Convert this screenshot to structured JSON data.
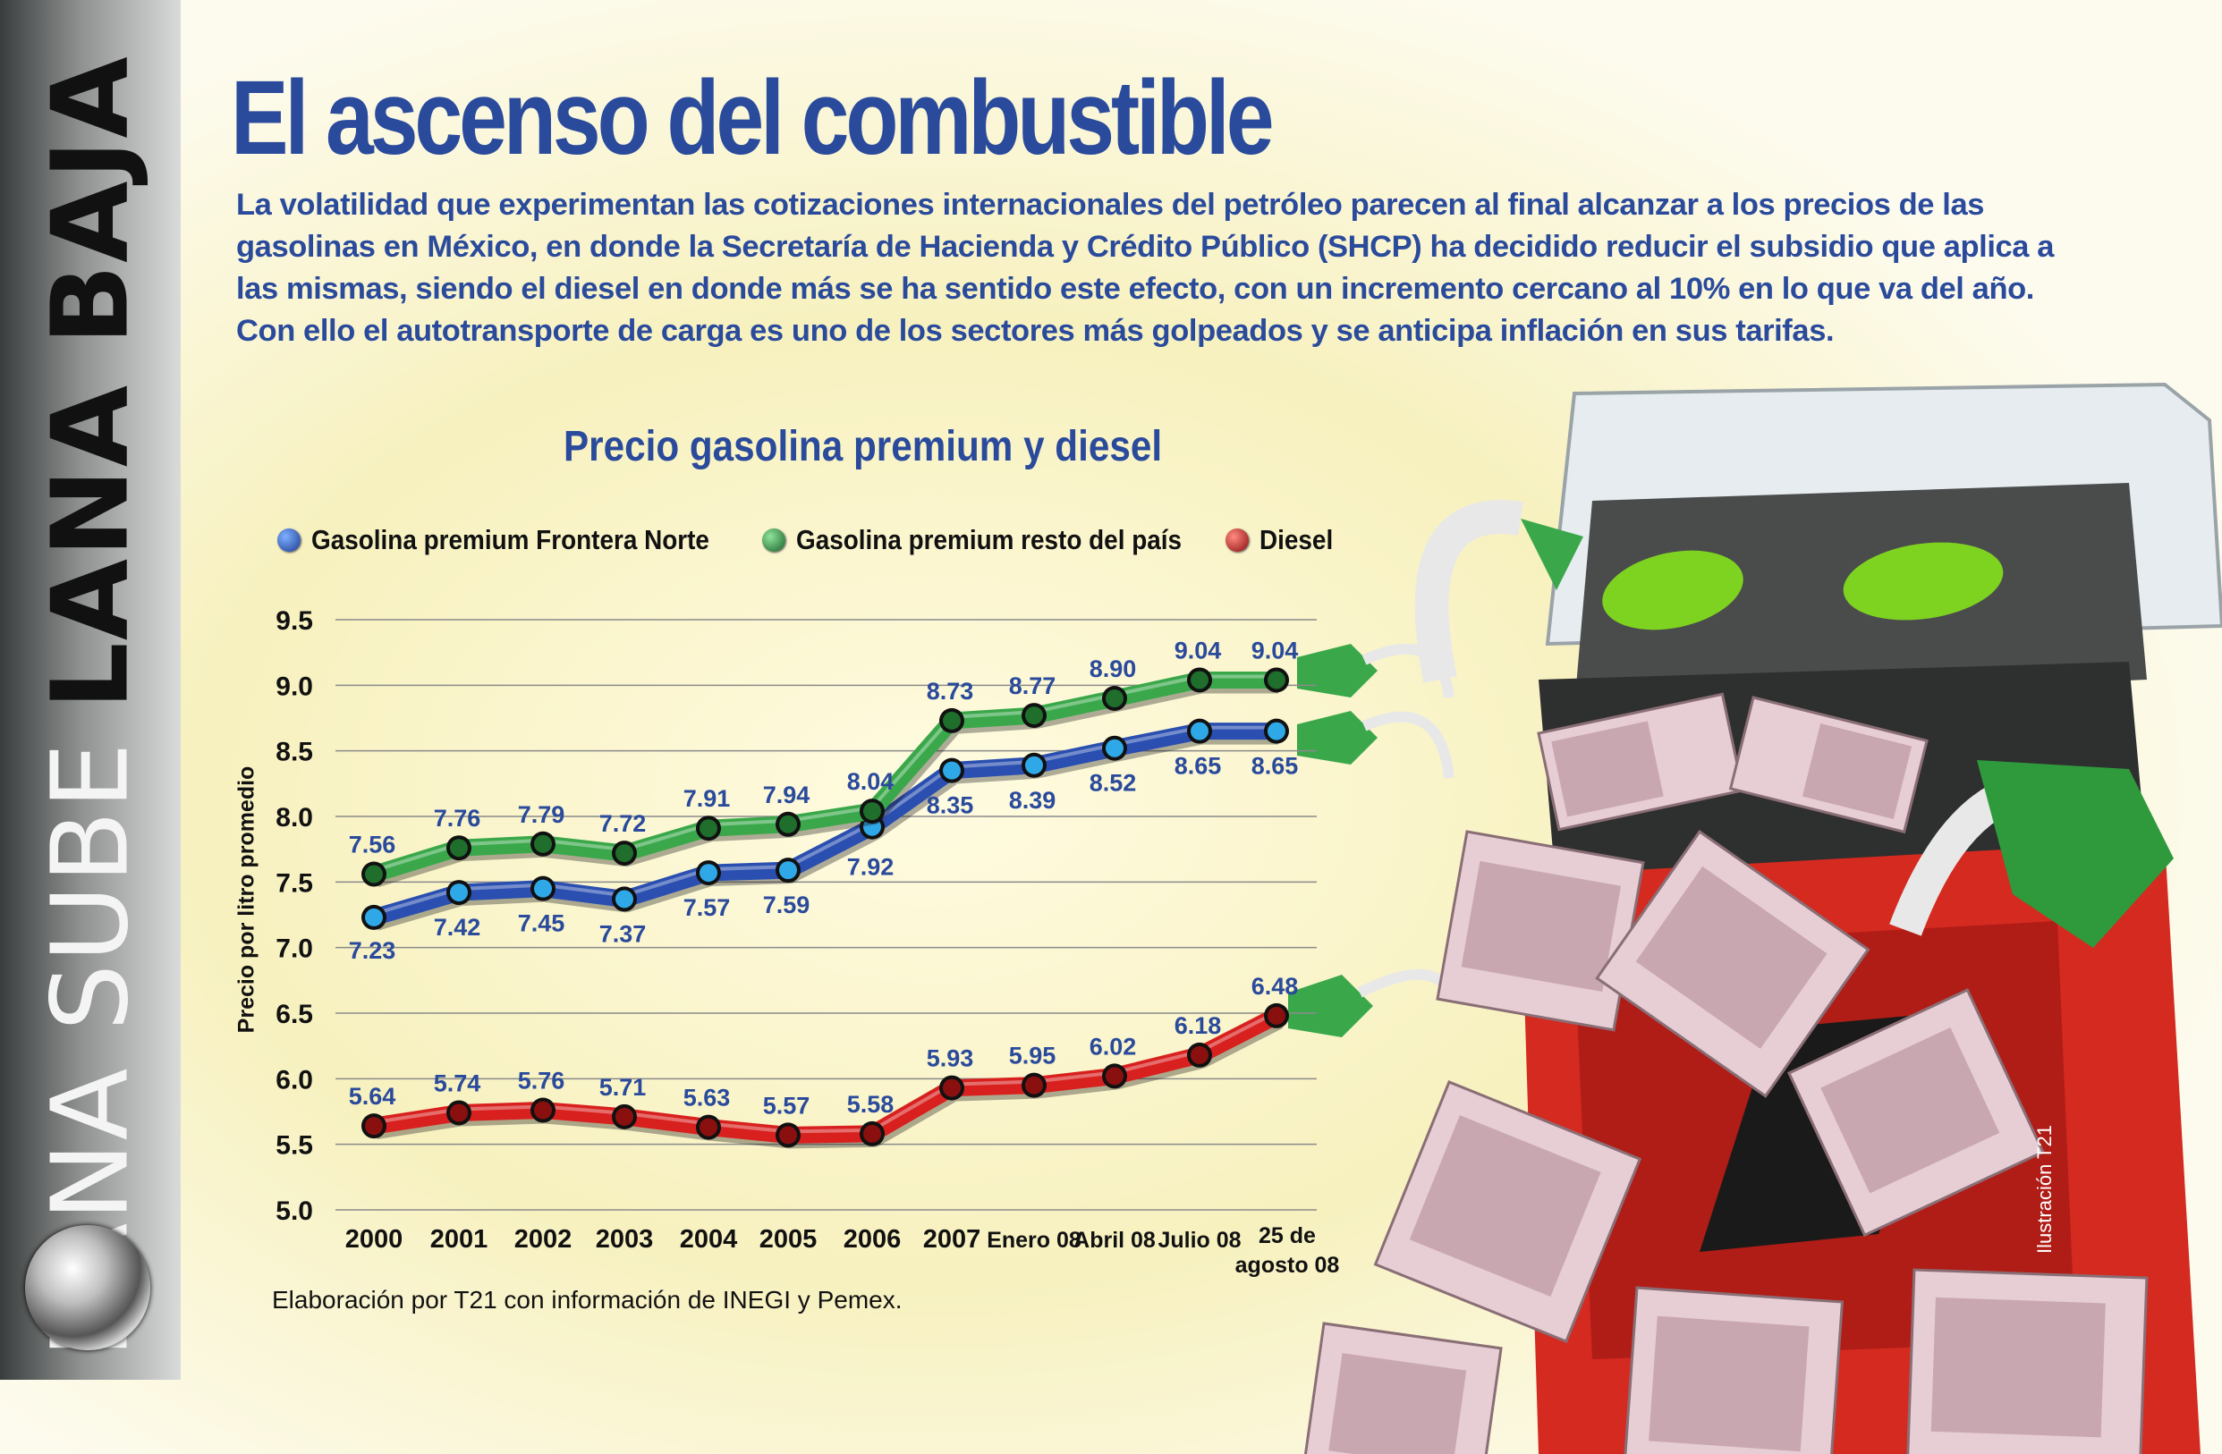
{
  "side_banner": {
    "thin_text": "LANA SUBE",
    "bold_text": "LANA BAJA"
  },
  "title": "El ascenso del combustible",
  "intro": "La volatilidad que experimentan las cotizaciones internacionales del petróleo parecen al final alcanzar a los precios de las gasolinas en México, en donde la Secretaría de Hacienda y Crédito Público (SHCP) ha decidido reducir el subsidio que aplica a las mismas, siendo el diesel en donde más se ha sentido este efecto, con un incremento cercano al 10% en lo que va del año. Con ello el autotransporte de carga es uno de los sectores más golpeados y se anticipa inflación en sus tarifas.",
  "source": "Elaboración por T21 con información de INEGI y Pemex.",
  "credit": "Ilustración T21",
  "colors": {
    "title_blue": "#2a4a9c",
    "blue": "#2a4fb0",
    "green": "#3aa84a",
    "red": "#d8201e"
  },
  "chart_data": {
    "type": "line",
    "title": "Precio gasolina premium y diesel",
    "ylabel": "Precio por litro promedio",
    "xlabel": "",
    "ylim": [
      5.0,
      9.5
    ],
    "yticks": [
      "5.0",
      "5.5",
      "6.0",
      "6.5",
      "7.0",
      "7.5",
      "8.0",
      "8.5",
      "9.0",
      "9.5"
    ],
    "grid": true,
    "legend_position": "top",
    "categories": [
      "2000",
      "2001",
      "2002",
      "2003",
      "2004",
      "2005",
      "2006",
      "2007",
      "Enero 08",
      "Abril 08",
      "Julio 08",
      "25 de agosto 08"
    ],
    "series": [
      {
        "name": "Gasolina premium Frontera Norte",
        "color": "#2a4fb0",
        "dot": "#2fa8e8",
        "values": [
          7.23,
          7.42,
          7.45,
          7.37,
          7.57,
          7.59,
          7.92,
          8.35,
          8.39,
          8.52,
          8.65,
          8.65
        ],
        "labels": [
          "7.23",
          "7.42",
          "7.45",
          "7.37",
          "7.57",
          "7.59",
          "7.92",
          "8.35",
          "8.39",
          "8.52",
          "8.65",
          "8.65"
        ]
      },
      {
        "name": "Gasolina premium resto del país",
        "color": "#3aa84a",
        "dot": "#1f6e2c",
        "values": [
          7.56,
          7.76,
          7.79,
          7.72,
          7.91,
          7.94,
          8.04,
          8.73,
          8.77,
          8.9,
          9.04,
          9.04
        ],
        "labels": [
          "7.56",
          "7.76",
          "7.79",
          "7.72",
          "7.91",
          "7.94",
          "8.04",
          "8.73",
          "8.77",
          "8.90",
          "9.04",
          "9.04"
        ]
      },
      {
        "name": "Diesel",
        "color": "#d8201e",
        "dot": "#8a1010",
        "values": [
          5.64,
          5.74,
          5.76,
          5.71,
          5.63,
          5.57,
          5.58,
          5.93,
          5.95,
          6.02,
          6.18,
          6.48
        ],
        "labels": [
          "5.64",
          "5.74",
          "5.76",
          "5.71",
          "5.63",
          "5.57",
          "5.58",
          "5.93",
          "5.95",
          "6.02",
          "6.18",
          "6.48"
        ]
      }
    ]
  }
}
